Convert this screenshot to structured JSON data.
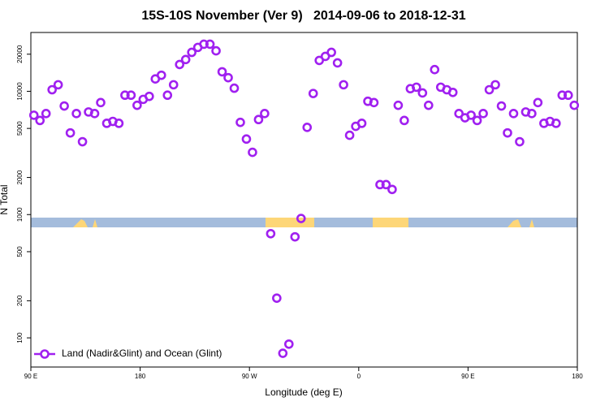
{
  "chart_data": {
    "type": "scatter",
    "title": "15S-10S November (Ver 9)   2014-09-06 to 2018-12-31",
    "x_label": "Longitude (deg E)",
    "y_label": "N Total",
    "x": [
      92.5,
      97.5,
      102.5,
      107.5,
      112.5,
      117.5,
      122.5,
      127.5,
      132.5,
      137.5,
      142.5,
      147.5,
      152.5,
      157.5,
      162.5,
      167.5,
      172.5,
      177.5,
      182.5,
      187.5,
      192.5,
      197.5,
      202.5,
      207.5,
      212.5,
      217.5,
      222.5,
      227.5,
      232.5,
      237.5,
      242.5,
      247.5,
      252.5,
      257.5,
      262.5,
      267.5,
      272.5,
      277.5,
      282.5,
      287.5,
      292.5,
      297.5,
      302.5,
      307.5,
      312.5,
      317.5,
      322.5,
      327.5,
      332.5,
      337.5,
      342.5,
      347.5,
      352.5,
      357.5,
      362.5,
      367.5,
      372.5,
      377.5,
      382.5,
      387.5,
      392.5,
      397.5,
      402.5,
      407.5,
      412.5,
      417.5,
      422.5,
      427.5,
      432.5,
      437.5,
      442.5,
      447.5,
      452.5,
      457.5,
      462.5,
      467.5,
      472.5,
      477.5,
      482.5,
      487.5,
      492.5,
      497.5,
      502.5,
      507.5,
      512.5,
      517.5,
      522.5,
      527.5,
      532.5,
      537.5
    ],
    "series": [
      {
        "name": "Land (Nadir&Glint) and Ocean (Glint)",
        "color": "#a020f0",
        "values": [
          6400,
          5800,
          6600,
          10300,
          11300,
          7600,
          4600,
          6600,
          3900,
          6800,
          6600,
          8100,
          5500,
          5700,
          5500,
          9300,
          9300,
          7700,
          8600,
          9100,
          12600,
          13500,
          9300,
          11300,
          16500,
          18100,
          20700,
          22700,
          24100,
          24100,
          21300,
          14400,
          12900,
          10600,
          5600,
          4100,
          3200,
          5900,
          6600,
          700,
          210,
          75,
          89,
          660,
          930,
          5100,
          9600,
          17800,
          19200,
          20700,
          17000,
          11300,
          4400,
          5200,
          5500,
          8300,
          8100,
          1750,
          1750,
          1600,
          7700,
          5800,
          10500,
          10800,
          9700,
          7700,
          15000,
          10800,
          10300,
          9800,
          6600,
          6100,
          6400,
          5800,
          6600,
          10300,
          11300,
          7600,
          4600,
          6600,
          3900,
          6800,
          6600,
          8100,
          5500,
          5700,
          5500,
          9300,
          9300,
          7700
        ]
      }
    ],
    "xlim": [
      90,
      540
    ],
    "xticks": [
      {
        "value": 90,
        "label": "90 E"
      },
      180,
      {
        "value": 270,
        "label": "90 W"
      },
      {
        "value": 360,
        "label": "0"
      },
      {
        "value": 450,
        "label": "90 E"
      },
      {
        "value": 540,
        "label": "180"
      }
    ],
    "ylim": [
      58,
      30000
    ],
    "yticks": [
      100,
      200,
      500,
      1000,
      2000,
      5000,
      10000,
      20000
    ],
    "log_y": true,
    "legend": "bottomleft"
  }
}
